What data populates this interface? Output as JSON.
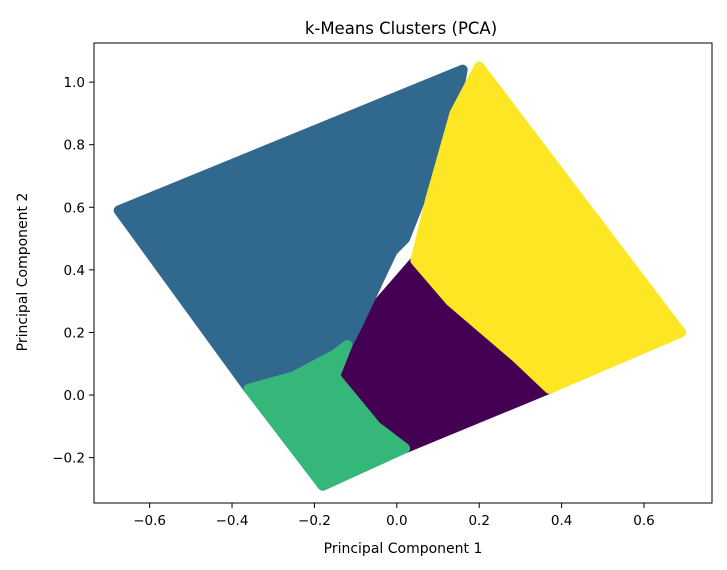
{
  "chart_data": {
    "type": "scatter",
    "title": "k-Means Clusters (PCA)",
    "xlabel": "Principal Component 1",
    "ylabel": "Principal Component 2",
    "xlim": [
      -0.735,
      0.765
    ],
    "ylim": [
      -0.345,
      1.125
    ],
    "xticks": [
      -0.6,
      -0.4,
      -0.2,
      0.0,
      0.2,
      0.4,
      0.6
    ],
    "xtick_labels": [
      "−0.6",
      "−0.4",
      "−0.2",
      "0.0",
      "0.2",
      "0.4",
      "0.6"
    ],
    "yticks": [
      -0.2,
      0.0,
      0.2,
      0.4,
      0.6,
      0.8,
      1.0
    ],
    "ytick_labels": [
      "−0.2",
      "0.0",
      "0.2",
      "0.4",
      "0.6",
      "0.8",
      "1.0"
    ],
    "grid": false,
    "legend": "none",
    "clusters": [
      {
        "color": "#440154",
        "region": [
          [
            -0.1,
            0.21
          ],
          [
            0.045,
            0.43
          ],
          [
            0.13,
            0.3
          ],
          [
            0.29,
            0.12
          ],
          [
            0.37,
            0.02
          ],
          [
            0.02,
            -0.17
          ],
          [
            -0.05,
            -0.1
          ],
          [
            -0.15,
            0.06
          ],
          [
            -0.12,
            0.16
          ]
        ]
      },
      {
        "color": "#31688e",
        "region": [
          [
            -0.675,
            0.59
          ],
          [
            0.16,
            1.04
          ],
          [
            0.14,
            0.9
          ],
          [
            0.02,
            0.5
          ],
          [
            -0.01,
            0.46
          ],
          [
            -0.1,
            0.21
          ],
          [
            -0.12,
            0.16
          ],
          [
            -0.15,
            0.13
          ],
          [
            -0.25,
            0.06
          ],
          [
            -0.36,
            0.02
          ]
        ]
      },
      {
        "color": "#35b779",
        "region": [
          [
            -0.36,
            0.02
          ],
          [
            -0.25,
            0.06
          ],
          [
            -0.15,
            0.13
          ],
          [
            -0.12,
            0.16
          ],
          [
            -0.15,
            0.06
          ],
          [
            -0.05,
            -0.1
          ],
          [
            0.02,
            -0.17
          ],
          [
            -0.18,
            -0.29
          ]
        ]
      },
      {
        "color": "#fde725",
        "region": [
          [
            0.2,
            1.05
          ],
          [
            0.69,
            0.2
          ],
          [
            0.37,
            0.02
          ],
          [
            0.29,
            0.12
          ],
          [
            0.13,
            0.3
          ],
          [
            0.045,
            0.43
          ],
          [
            0.08,
            0.62
          ],
          [
            0.14,
            0.9
          ]
        ]
      }
    ]
  }
}
